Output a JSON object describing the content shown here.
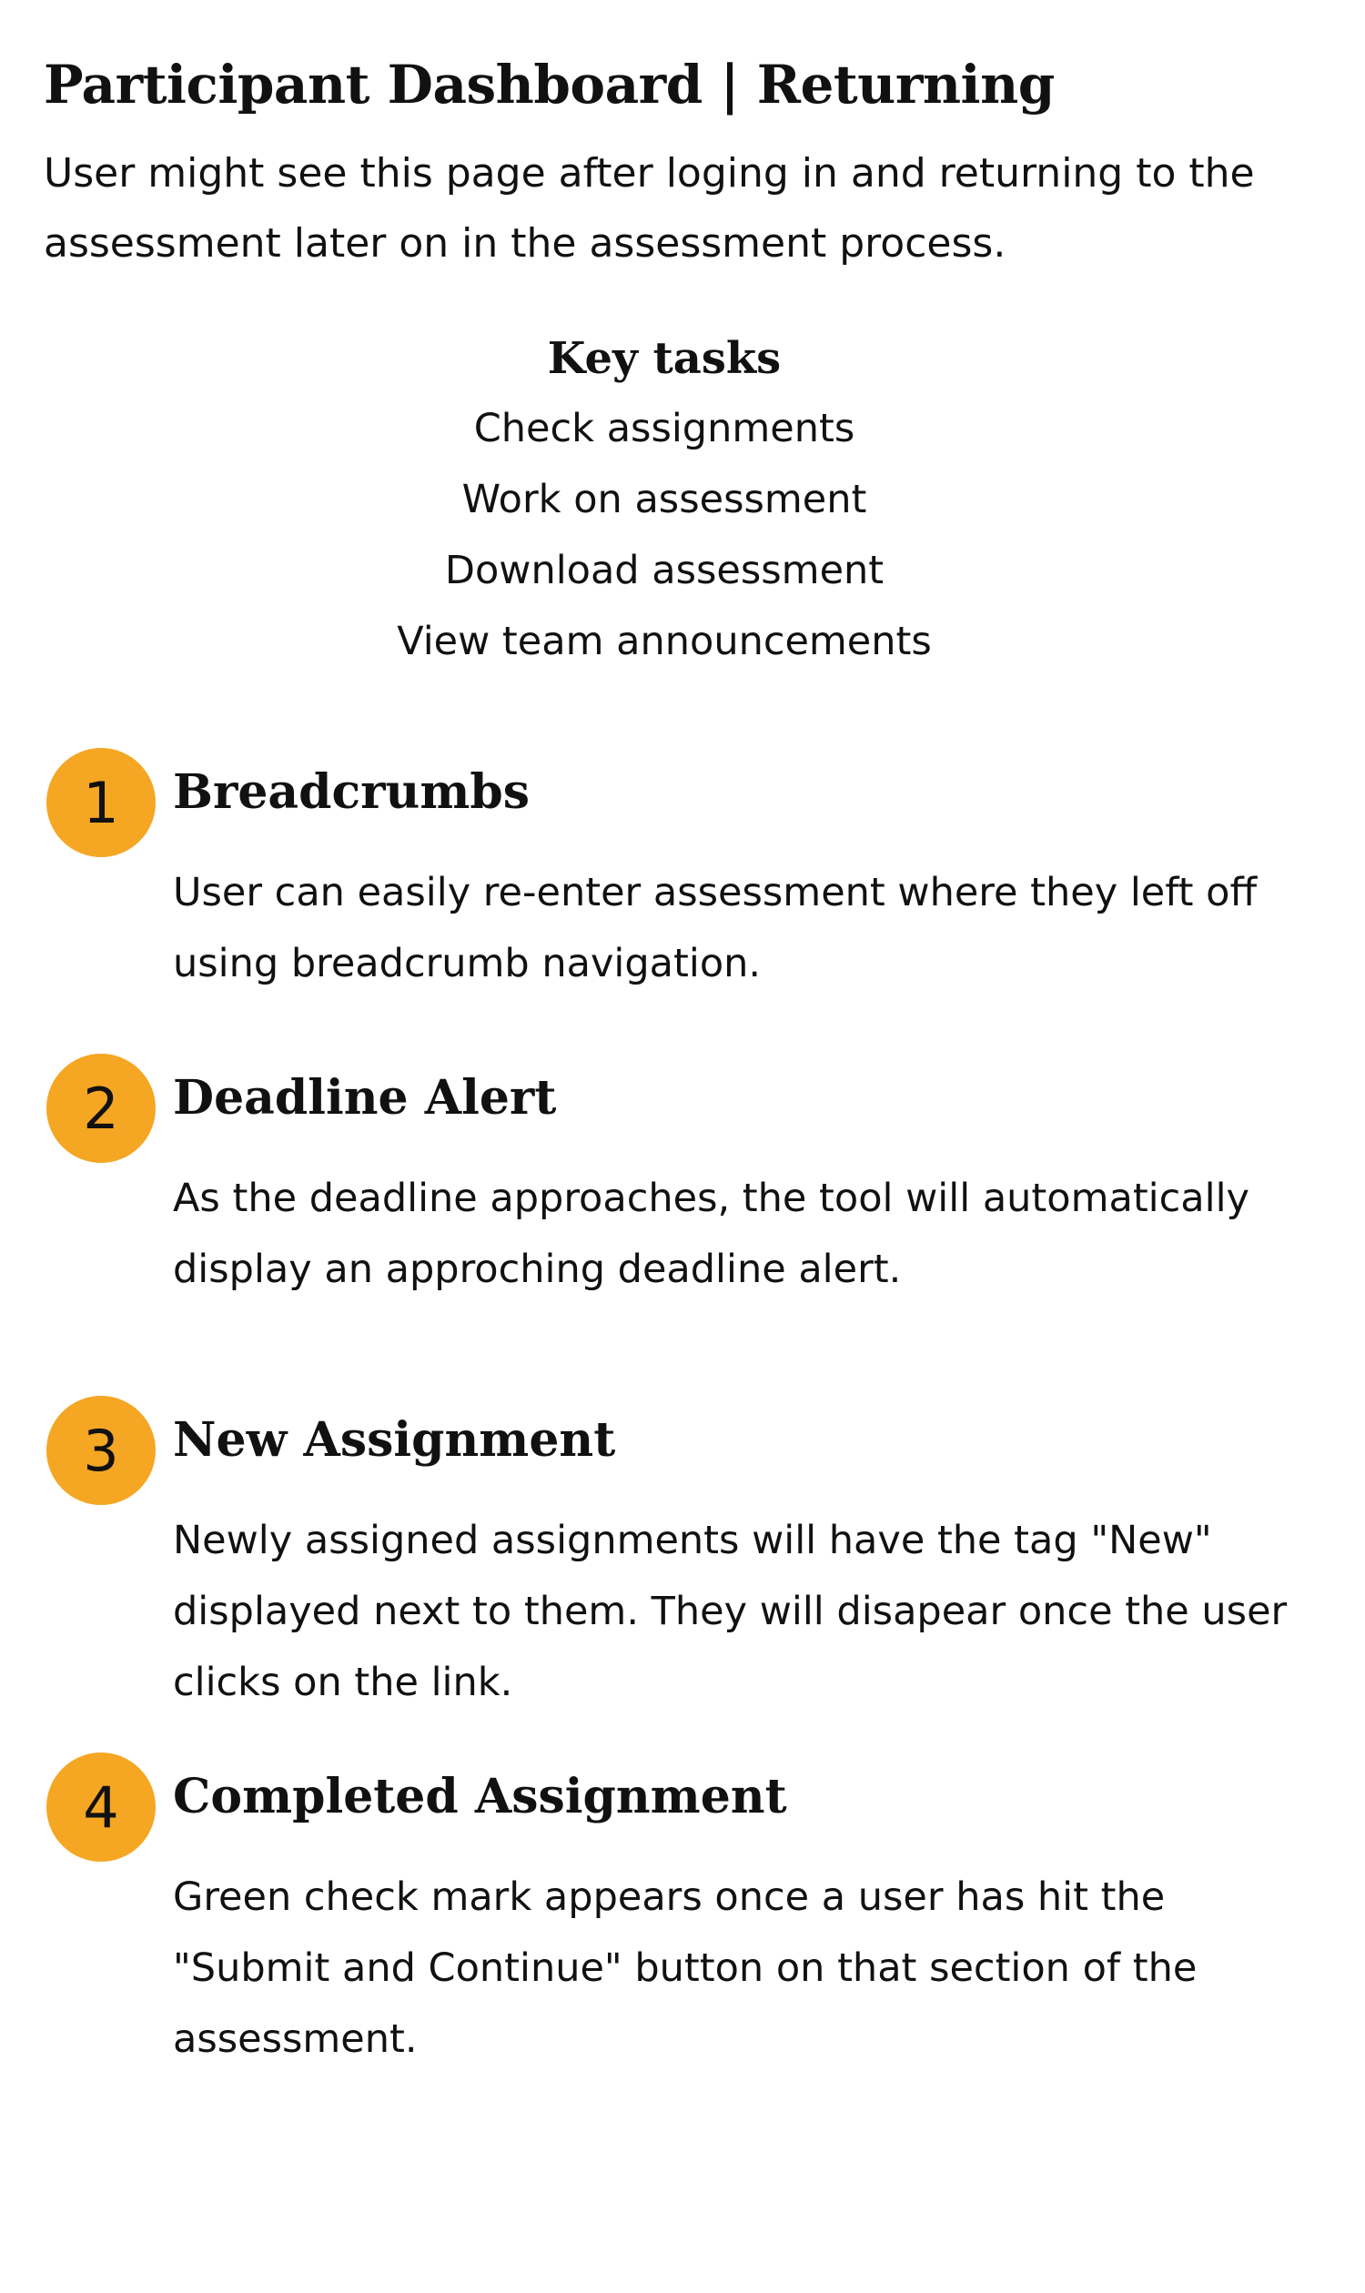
{
  "header": {
    "title": "Participant Dashboard | Returning",
    "intro": "User might see this page after loging in and returning to the assessment later on in the assessment process."
  },
  "key_tasks": {
    "heading": "Key tasks",
    "items": [
      "Check assignments",
      "Work on assessment",
      "Download assessment",
      "View team announcements"
    ]
  },
  "features": [
    {
      "number": "1",
      "title": "Breadcrumbs",
      "description": "User can easily re-enter assessment where they left off using breadcrumb navigation."
    },
    {
      "number": "2",
      "title": "Deadline Alert",
      "description": "As the deadline approaches, the tool will automatically display an approching deadline alert."
    },
    {
      "number": "3",
      "title": "New Assignment",
      "description": "Newly assigned assignments will have the tag \"New\" displayed next to them.  They will disapear once the user clicks on the link."
    },
    {
      "number": "4",
      "title": "Completed Assignment",
      "description": "Green check mark appears once a user has hit the \"Submit and Continue\" button on that section of the assessment."
    }
  ],
  "colors": {
    "badge": "#f5a623",
    "text": "#111111",
    "background": "#ffffff"
  }
}
